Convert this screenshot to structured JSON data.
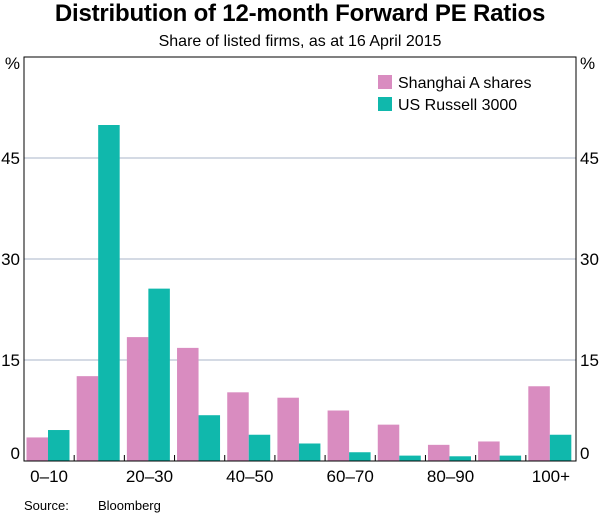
{
  "title": "Distribution of 12-month Forward PE Ratios",
  "subtitle": "Share of listed firms, as at 16 April 2015",
  "source": {
    "label": "Source:",
    "value": "Bloomberg"
  },
  "colors": {
    "shanghai": "#d98cc0",
    "russell": "#10b8ac",
    "grid": "#aab6c8",
    "axis": "#000000"
  },
  "chart_data": {
    "type": "bar",
    "categories": [
      "0–10",
      "10–20",
      "20–30",
      "30–40",
      "40–50",
      "50–60",
      "60–70",
      "70–80",
      "80–90",
      "90–100",
      "100+"
    ],
    "x_tick_labels": [
      "0–10",
      "",
      "20–30",
      "",
      "40–50",
      "",
      "60–70",
      "",
      "80–90",
      "",
      "100+"
    ],
    "series": [
      {
        "name": "Shanghai A shares",
        "values": [
          3.5,
          12.6,
          18.4,
          16.8,
          10.2,
          9.4,
          7.5,
          5.4,
          2.4,
          2.9,
          11.1
        ]
      },
      {
        "name": "US Russell 3000",
        "values": [
          4.6,
          49.9,
          25.6,
          6.8,
          3.9,
          2.6,
          1.3,
          0.8,
          0.7,
          0.8,
          3.9
        ]
      }
    ],
    "ylim": [
      0,
      60
    ],
    "y_ticks": [
      0,
      15,
      30,
      45
    ],
    "y_unit_label": "%",
    "grid": true,
    "legend_position": "top-right"
  }
}
